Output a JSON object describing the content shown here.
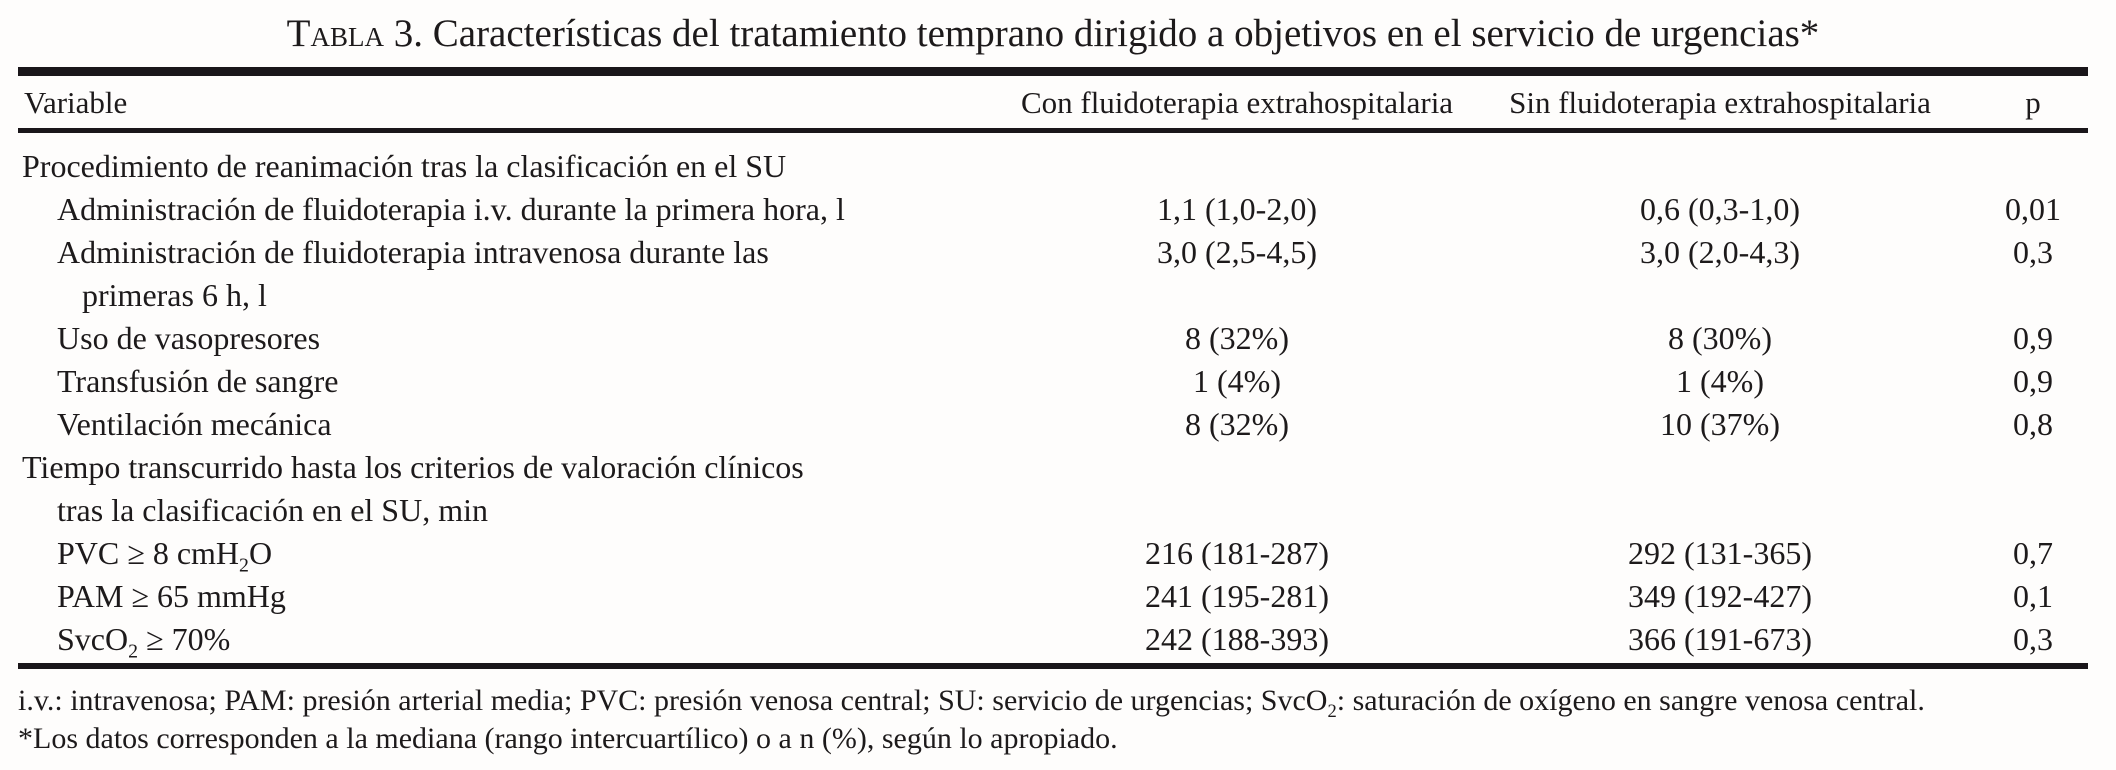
{
  "title": {
    "word": "Tabla",
    "rest": " 3. Características del tratamiento temprano dirigido a objetivos en el servicio de urgencias*"
  },
  "table": {
    "columns": [
      "Variable",
      "Con fluidoterapia extrahospitalaria",
      "Sin fluidoterapia extrahospitalaria",
      "p"
    ],
    "rows": [
      {
        "label": "Procedimiento de reanimación tras la clasificación en el SU",
        "indent": 0,
        "con": "",
        "sin": "",
        "p": ""
      },
      {
        "label": "Administración de fluidoterapia i.v. durante la primera hora, l",
        "indent": 1,
        "con": "1,1 (1,0-2,0)",
        "sin": "0,6 (0,3-1,0)",
        "p": "0,01"
      },
      {
        "label": "Administración de fluidoterapia intravenosa durante las",
        "label2": "primeras 6 h, l",
        "indent": 1,
        "con": "3,0 (2,5-4,5)",
        "sin": "3,0 (2,0-4,3)",
        "p": "0,3"
      },
      {
        "label": "Uso de vasopresores",
        "indent": 1,
        "con": "8 (32%)",
        "sin": "8 (30%)",
        "p": "0,9"
      },
      {
        "label": "Transfusión de sangre",
        "indent": 1,
        "con": "1 (4%)",
        "sin": "1 (4%)",
        "p": "0,9"
      },
      {
        "label": "Ventilación mecánica",
        "indent": 1,
        "con": "8 (32%)",
        "sin": "10 (37%)",
        "p": "0,8"
      },
      {
        "label": "Tiempo transcurrido hasta los criterios de valoración clínicos",
        "label2": "tras la clasificación en el SU, min",
        "indent": 0,
        "con": "",
        "sin": "",
        "p": ""
      },
      {
        "label": "PVC ≥ 8 cmH_{2}O",
        "indent": 1,
        "con": "216 (181-287)",
        "sin": "292 (131-365)",
        "p": "0,7"
      },
      {
        "label": "PAM ≥ 65 mmHg",
        "indent": 1,
        "con": "241 (195-281)",
        "sin": "349 (192-427)",
        "p": "0,1"
      },
      {
        "label": "SvcO_{2} ≥ 70%",
        "indent": 1,
        "con": "242 (188-393)",
        "sin": "366 (191-673)",
        "p": "0,3"
      }
    ]
  },
  "footnotes": [
    "i.v.: intravenosa; PAM: presión arterial media; PVC: presión venosa central; SU: servicio de urgencias; SvcO_{2}: saturación de oxígeno en sangre venosa central.",
    "*Los datos corresponden a la mediana (rango intercuartílico) o a n (%), según lo apropiado."
  ],
  "colors": {
    "text": "#1d1a1b",
    "rule": "#1a161a",
    "background": "#fefdfc"
  }
}
